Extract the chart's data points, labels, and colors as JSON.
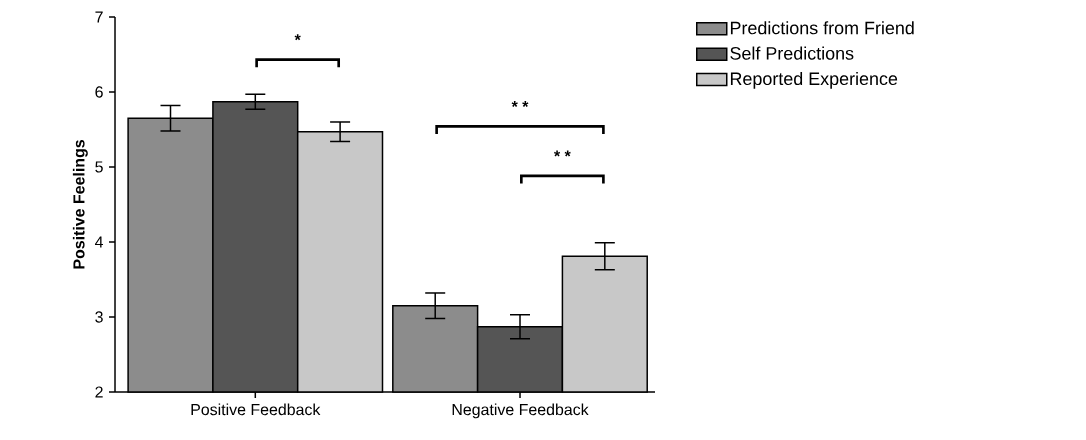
{
  "chart_data": {
    "type": "bar",
    "ylabel": "Positive Feelings",
    "categories": [
      "Positive Feedback",
      "Negative Feedback"
    ],
    "series": [
      {
        "name": "Predictions from Friend",
        "color": "#8c8c8c",
        "values": [
          5.65,
          3.15
        ],
        "errors": [
          0.17,
          0.17
        ]
      },
      {
        "name": "Self Predictions",
        "color": "#555555",
        "values": [
          5.87,
          2.87
        ],
        "errors": [
          0.1,
          0.16
        ]
      },
      {
        "name": "Reported Experience",
        "color": "#c8c8c8",
        "values": [
          5.47,
          3.81
        ],
        "errors": [
          0.13,
          0.18
        ]
      }
    ],
    "ylim": [
      2,
      7
    ],
    "yticks": [
      2,
      3,
      4,
      5,
      6,
      7
    ],
    "legend": "top right",
    "grid": false,
    "annotations": [
      "*",
      "* *",
      "* *"
    ]
  }
}
